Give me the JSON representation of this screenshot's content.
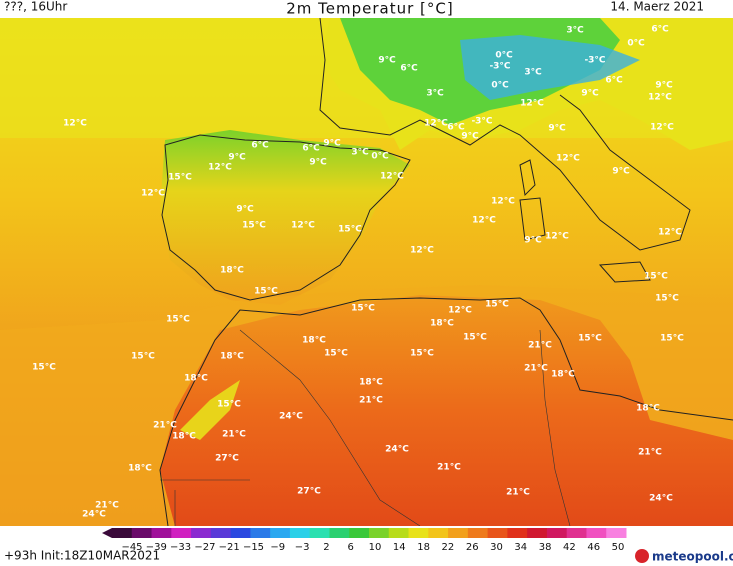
{
  "header": {
    "left": "???, 16Uhr",
    "title": "2m Temperatur [°C]",
    "date": "14. Maerz 2021"
  },
  "map_labels": [
    "12°C",
    "12°C",
    "15°C",
    "9°C",
    "12°C",
    "6°C",
    "6°C",
    "9°C",
    "9°C",
    "3°C",
    "0°C",
    "12°C",
    "9°C",
    "6°C",
    "3°C",
    "3°C",
    "0°C",
    "6°C",
    "0°C",
    "-3°C",
    "3°C",
    "-3°C",
    "0°C",
    "6°C",
    "9°C",
    "12°C",
    "12°C",
    "9°C",
    "12°C",
    "6°C",
    "-3°C",
    "9°C",
    "9°C",
    "12°C",
    "12°C",
    "9°C",
    "12°C",
    "12°C",
    "9°C",
    "12°C",
    "12°C",
    "9°C",
    "15°C",
    "12°C",
    "15°C",
    "18°C",
    "15°C",
    "12°C",
    "15°C",
    "15°C",
    "15°C",
    "15°C",
    "15°C",
    "12°C",
    "18°C",
    "15°C",
    "15°C",
    "15°C",
    "15°C",
    "15°C",
    "18°C",
    "18°C",
    "15°C",
    "15°C",
    "21°C",
    "21°C",
    "18°C",
    "18°C",
    "18°C",
    "21°C",
    "15°C",
    "24°C",
    "18°C",
    "21°C",
    "18°C",
    "21°C",
    "24°C",
    "27°C",
    "21°C",
    "21°C",
    "18°C",
    "27°C",
    "21°C",
    "24°C",
    "21°C",
    "24°C"
  ],
  "colorbar": {
    "ticks": [
      "−45",
      "−39",
      "−33",
      "−27",
      "−21",
      "−15",
      "−9",
      "−3",
      "2",
      "6",
      "10",
      "14",
      "18",
      "22",
      "26",
      "30",
      "34",
      "38",
      "42",
      "46",
      "50"
    ]
  },
  "footer": {
    "run": "+93h  Init:18Z10MAR2021",
    "logo": "meteopool.org"
  }
}
